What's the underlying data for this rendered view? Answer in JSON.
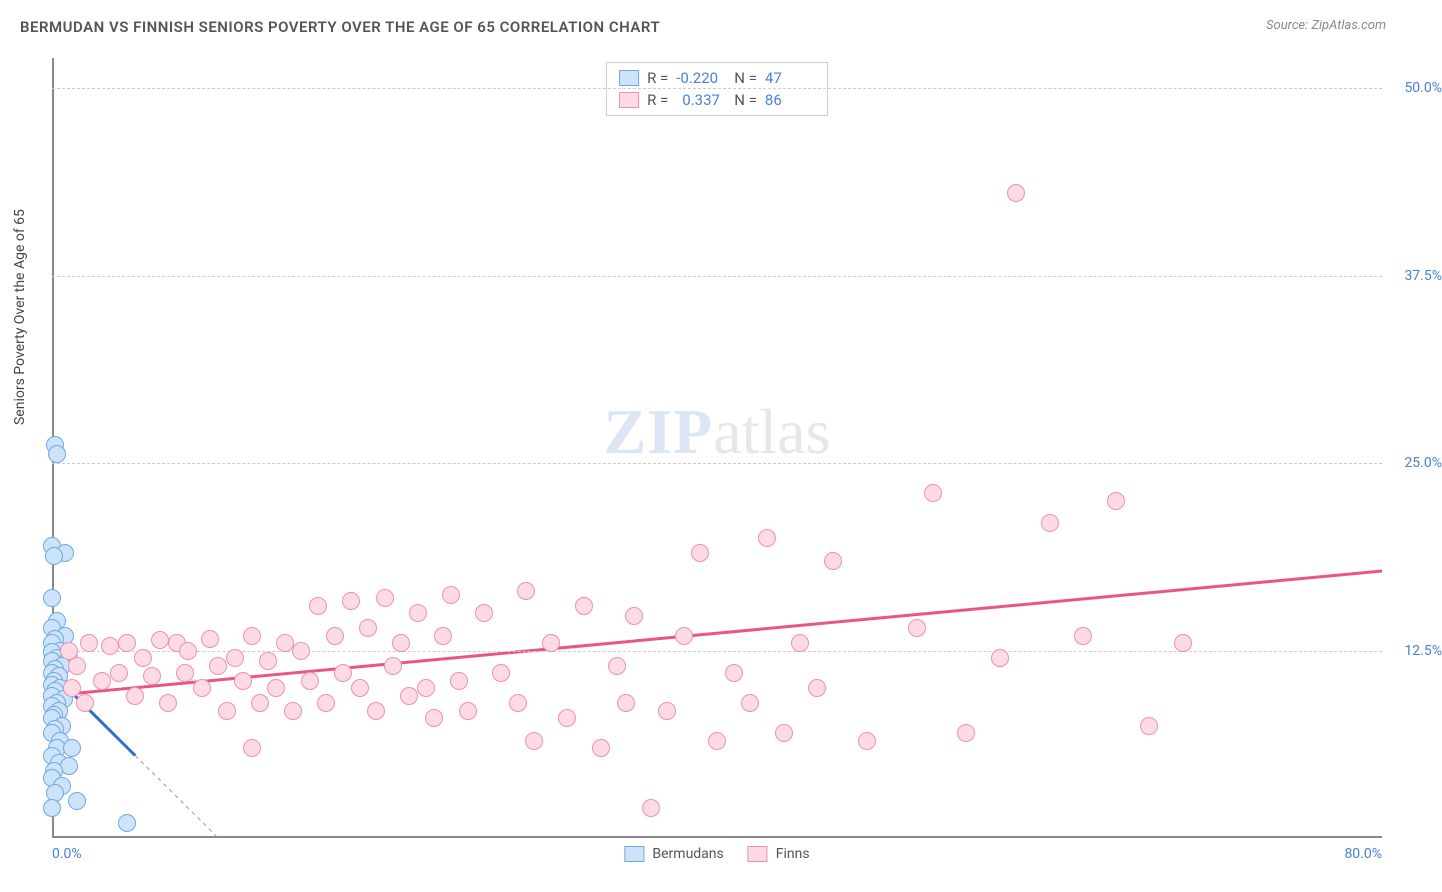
{
  "header": {
    "title": "BERMUDAN VS FINNISH SENIORS POVERTY OVER THE AGE OF 65 CORRELATION CHART",
    "source_prefix": "Source: ",
    "source_name": "ZipAtlas.com"
  },
  "chart": {
    "type": "scatter",
    "ylabel": "Seniors Poverty Over the Age of 65",
    "xlim": [
      0,
      80
    ],
    "ylim": [
      0,
      52
    ],
    "xtick_labels": {
      "min": "0.0%",
      "max": "80.0%"
    },
    "ytick_positions": [
      12.5,
      25.0,
      37.5,
      50.0
    ],
    "ytick_labels": [
      "12.5%",
      "25.0%",
      "37.5%",
      "50.0%"
    ],
    "grid_color": "#cccccc",
    "background_color": "#ffffff",
    "marker_radius": 9,
    "marker_border_width": 1.5,
    "watermark": {
      "zip": "ZIP",
      "atlas": "atlas"
    },
    "series": [
      {
        "name": "Bermudans",
        "fill_color": "#cde3f8",
        "stroke_color": "#6fa8e8",
        "correlation_R": "-0.220",
        "correlation_N": "47",
        "trend": {
          "x1": 0,
          "y1": 11.0,
          "x2": 5.0,
          "y2": 5.5,
          "color": "#2f6fd0",
          "width": 3,
          "dash_extend_to_x": 10,
          "dash_extend_to_y": 0
        },
        "points": [
          [
            0.2,
            26.2
          ],
          [
            0.3,
            25.6
          ],
          [
            0.0,
            19.5
          ],
          [
            0.8,
            19.0
          ],
          [
            0.1,
            18.8
          ],
          [
            0.0,
            16.0
          ],
          [
            0.3,
            14.5
          ],
          [
            0.0,
            14.0
          ],
          [
            0.8,
            13.5
          ],
          [
            0.2,
            13.3
          ],
          [
            0.0,
            13.0
          ],
          [
            0.5,
            12.5
          ],
          [
            0.0,
            12.4
          ],
          [
            0.3,
            12.0
          ],
          [
            1.0,
            12.0
          ],
          [
            0.0,
            11.8
          ],
          [
            0.6,
            11.5
          ],
          [
            0.2,
            11.3
          ],
          [
            0.0,
            11.0
          ],
          [
            0.4,
            10.8
          ],
          [
            0.1,
            10.5
          ],
          [
            0.0,
            10.2
          ],
          [
            0.5,
            10.0
          ],
          [
            0.2,
            9.8
          ],
          [
            0.0,
            9.5
          ],
          [
            0.7,
            9.3
          ],
          [
            0.3,
            9.0
          ],
          [
            0.0,
            8.8
          ],
          [
            0.4,
            8.5
          ],
          [
            0.1,
            8.2
          ],
          [
            0.0,
            8.0
          ],
          [
            0.6,
            7.5
          ],
          [
            0.2,
            7.3
          ],
          [
            0.0,
            7.0
          ],
          [
            0.5,
            6.5
          ],
          [
            0.3,
            6.0
          ],
          [
            1.2,
            6.0
          ],
          [
            0.0,
            5.5
          ],
          [
            0.4,
            5.0
          ],
          [
            1.0,
            4.8
          ],
          [
            0.1,
            4.5
          ],
          [
            0.0,
            4.0
          ],
          [
            0.6,
            3.5
          ],
          [
            0.2,
            3.0
          ],
          [
            1.5,
            2.5
          ],
          [
            0.0,
            2.0
          ],
          [
            4.5,
            1.0
          ]
        ]
      },
      {
        "name": "Finns",
        "fill_color": "#fddbe4",
        "stroke_color": "#f08fb0",
        "correlation_R": "0.337",
        "correlation_N": "86",
        "trend": {
          "x1": 0,
          "y1": 9.5,
          "x2": 80,
          "y2": 17.8,
          "color": "#e8558a",
          "width": 3
        },
        "points": [
          [
            1.0,
            12.5
          ],
          [
            1.2,
            10.0
          ],
          [
            1.5,
            11.5
          ],
          [
            2.0,
            9.0
          ],
          [
            2.2,
            13.0
          ],
          [
            3.0,
            10.5
          ],
          [
            3.5,
            12.8
          ],
          [
            4.0,
            11.0
          ],
          [
            4.5,
            13.0
          ],
          [
            5.0,
            9.5
          ],
          [
            5.5,
            12.0
          ],
          [
            6.0,
            10.8
          ],
          [
            6.5,
            13.2
          ],
          [
            7.0,
            9.0
          ],
          [
            7.5,
            13.0
          ],
          [
            8.0,
            11.0
          ],
          [
            8.2,
            12.5
          ],
          [
            9.0,
            10.0
          ],
          [
            9.5,
            13.3
          ],
          [
            10.0,
            11.5
          ],
          [
            10.5,
            8.5
          ],
          [
            11.0,
            12.0
          ],
          [
            11.5,
            10.5
          ],
          [
            12.0,
            13.5
          ],
          [
            12.0,
            6.0
          ],
          [
            12.5,
            9.0
          ],
          [
            13.0,
            11.8
          ],
          [
            13.5,
            10.0
          ],
          [
            14.0,
            13.0
          ],
          [
            14.5,
            8.5
          ],
          [
            15.0,
            12.5
          ],
          [
            15.5,
            10.5
          ],
          [
            16.0,
            15.5
          ],
          [
            16.5,
            9.0
          ],
          [
            17.0,
            13.5
          ],
          [
            17.5,
            11.0
          ],
          [
            18.0,
            15.8
          ],
          [
            18.5,
            10.0
          ],
          [
            19.0,
            14.0
          ],
          [
            19.5,
            8.5
          ],
          [
            20.0,
            16.0
          ],
          [
            20.5,
            11.5
          ],
          [
            21.0,
            13.0
          ],
          [
            21.5,
            9.5
          ],
          [
            22.0,
            15.0
          ],
          [
            22.5,
            10.0
          ],
          [
            23.0,
            8.0
          ],
          [
            23.5,
            13.5
          ],
          [
            24.0,
            16.2
          ],
          [
            24.5,
            10.5
          ],
          [
            25.0,
            8.5
          ],
          [
            26.0,
            15.0
          ],
          [
            27.0,
            11.0
          ],
          [
            28.0,
            9.0
          ],
          [
            28.5,
            16.5
          ],
          [
            29.0,
            6.5
          ],
          [
            30.0,
            13.0
          ],
          [
            31.0,
            8.0
          ],
          [
            32.0,
            15.5
          ],
          [
            33.0,
            6.0
          ],
          [
            34.0,
            11.5
          ],
          [
            34.5,
            9.0
          ],
          [
            35.0,
            14.8
          ],
          [
            36.0,
            2.0
          ],
          [
            37.0,
            8.5
          ],
          [
            38.0,
            13.5
          ],
          [
            39.0,
            19.0
          ],
          [
            40.0,
            6.5
          ],
          [
            41.0,
            11.0
          ],
          [
            42.0,
            9.0
          ],
          [
            43.0,
            20.0
          ],
          [
            44.0,
            7.0
          ],
          [
            45.0,
            13.0
          ],
          [
            46.0,
            10.0
          ],
          [
            47.0,
            18.5
          ],
          [
            49.0,
            6.5
          ],
          [
            52.0,
            14.0
          ],
          [
            53.0,
            23.0
          ],
          [
            55.0,
            7.0
          ],
          [
            57.0,
            12.0
          ],
          [
            58.0,
            43.0
          ],
          [
            60.0,
            21.0
          ],
          [
            62.0,
            13.5
          ],
          [
            64.0,
            22.5
          ],
          [
            66.0,
            7.5
          ],
          [
            68.0,
            13.0
          ]
        ]
      }
    ],
    "bottom_legend": [
      {
        "label": "Bermudans",
        "fill": "#cde3f8",
        "stroke": "#6fa8e8"
      },
      {
        "label": "Finns",
        "fill": "#fddbe4",
        "stroke": "#f08fb0"
      }
    ]
  }
}
